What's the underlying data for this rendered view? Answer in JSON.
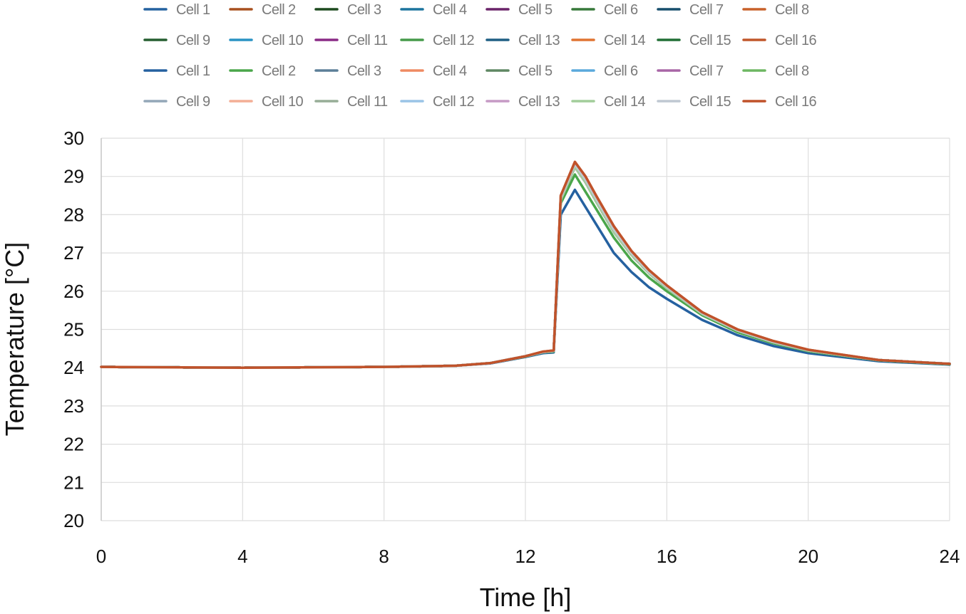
{
  "chart_data": {
    "type": "line",
    "xlabel": "Time [h]",
    "ylabel": "Temperature [°C]",
    "xlim": [
      0,
      24
    ],
    "ylim": [
      20,
      30
    ],
    "xticks": [
      0,
      4,
      8,
      12,
      16,
      20,
      24
    ],
    "yticks": [
      20,
      21,
      22,
      23,
      24,
      25,
      26,
      27,
      28,
      29,
      30
    ],
    "grid": true,
    "legend_placement": "top",
    "x": [
      0,
      4,
      8,
      10,
      11,
      12,
      12.5,
      12.8,
      13.0,
      13.4,
      13.7,
      14,
      14.5,
      15,
      15.5,
      16,
      17,
      18,
      19,
      20,
      22,
      24
    ],
    "series": [
      {
        "name": "Cell 1",
        "color": "#2462a0",
        "values": [
          24.02,
          24.0,
          24.02,
          24.05,
          24.12,
          24.3,
          24.41,
          24.44,
          28.4,
          29.25,
          28.85,
          28.35,
          27.55,
          26.95,
          26.47,
          26.08,
          25.41,
          24.97,
          24.67,
          24.45,
          24.2,
          24.1
        ]
      },
      {
        "name": "Cell 2",
        "color": "#a8501f",
        "values": [
          24.02,
          24.0,
          24.02,
          24.05,
          24.12,
          24.3,
          24.41,
          24.44,
          28.4,
          29.25,
          28.85,
          28.35,
          27.55,
          26.95,
          26.47,
          26.08,
          25.41,
          24.97,
          24.67,
          24.45,
          24.2,
          24.1
        ]
      },
      {
        "name": "Cell 3",
        "color": "#1d4a1f",
        "values": [
          24.02,
          24.0,
          24.02,
          24.05,
          24.12,
          24.3,
          24.41,
          24.44,
          28.4,
          29.25,
          28.85,
          28.35,
          27.55,
          26.95,
          26.47,
          26.08,
          25.41,
          24.97,
          24.67,
          24.45,
          24.2,
          24.1
        ]
      },
      {
        "name": "Cell 4",
        "color": "#1c749e",
        "values": [
          24.02,
          24.0,
          24.02,
          24.05,
          24.12,
          24.3,
          24.41,
          24.44,
          28.4,
          29.25,
          28.85,
          28.35,
          27.55,
          26.95,
          26.47,
          26.08,
          25.41,
          24.97,
          24.67,
          24.45,
          24.2,
          24.1
        ]
      },
      {
        "name": "Cell 5",
        "color": "#6a2369",
        "values": [
          24.02,
          24.0,
          24.02,
          24.05,
          24.12,
          24.3,
          24.41,
          24.44,
          28.4,
          29.25,
          28.85,
          28.35,
          27.55,
          26.95,
          26.47,
          26.08,
          25.41,
          24.97,
          24.67,
          24.45,
          24.2,
          24.1
        ]
      },
      {
        "name": "Cell 6",
        "color": "#37793a",
        "values": [
          24.02,
          24.0,
          24.02,
          24.05,
          24.12,
          24.3,
          24.41,
          24.44,
          28.4,
          29.25,
          28.85,
          28.35,
          27.55,
          26.95,
          26.47,
          26.08,
          25.41,
          24.97,
          24.67,
          24.45,
          24.2,
          24.1
        ]
      },
      {
        "name": "Cell 7",
        "color": "#174e6c",
        "values": [
          24.02,
          24.0,
          24.02,
          24.05,
          24.12,
          24.3,
          24.41,
          24.44,
          28.4,
          29.25,
          28.85,
          28.35,
          27.55,
          26.95,
          26.47,
          26.08,
          25.41,
          24.97,
          24.67,
          24.45,
          24.2,
          24.1
        ]
      },
      {
        "name": "Cell 8",
        "color": "#c8612a",
        "values": [
          24.02,
          24.0,
          24.02,
          24.05,
          24.12,
          24.3,
          24.41,
          24.44,
          28.4,
          29.25,
          28.85,
          28.35,
          27.55,
          26.95,
          26.47,
          26.08,
          25.41,
          24.97,
          24.67,
          24.45,
          24.2,
          24.1
        ]
      },
      {
        "name": "Cell 9",
        "color": "#255e30",
        "values": [
          24.02,
          24.0,
          24.02,
          24.05,
          24.12,
          24.3,
          24.41,
          24.44,
          28.4,
          29.25,
          28.85,
          28.35,
          27.55,
          26.95,
          26.47,
          26.08,
          25.41,
          24.97,
          24.67,
          24.45,
          24.2,
          24.1
        ]
      },
      {
        "name": "Cell 10",
        "color": "#2a93c4",
        "values": [
          24.02,
          24.0,
          24.02,
          24.05,
          24.12,
          24.3,
          24.41,
          24.44,
          28.4,
          29.25,
          28.85,
          28.35,
          27.55,
          26.95,
          26.47,
          26.08,
          25.41,
          24.97,
          24.67,
          24.45,
          24.2,
          24.1
        ]
      },
      {
        "name": "Cell 11",
        "color": "#8a2b86",
        "values": [
          24.02,
          24.0,
          24.02,
          24.05,
          24.12,
          24.3,
          24.41,
          24.44,
          28.4,
          29.25,
          28.85,
          28.35,
          27.55,
          26.95,
          26.47,
          26.08,
          25.41,
          24.97,
          24.67,
          24.45,
          24.2,
          24.1
        ]
      },
      {
        "name": "Cell 12",
        "color": "#459a4a",
        "values": [
          24.02,
          24.0,
          24.02,
          24.05,
          24.12,
          24.3,
          24.41,
          24.44,
          28.4,
          29.25,
          28.85,
          28.35,
          27.55,
          26.95,
          26.47,
          26.08,
          25.41,
          24.97,
          24.67,
          24.45,
          24.2,
          24.1
        ]
      },
      {
        "name": "Cell 13",
        "color": "#1f5f84",
        "values": [
          24.02,
          24.0,
          24.02,
          24.05,
          24.12,
          24.3,
          24.41,
          24.44,
          28.4,
          29.25,
          28.85,
          28.35,
          27.55,
          26.95,
          26.47,
          26.08,
          25.41,
          24.97,
          24.67,
          24.45,
          24.2,
          24.1
        ]
      },
      {
        "name": "Cell 14",
        "color": "#e07432",
        "values": [
          24.02,
          24.0,
          24.02,
          24.05,
          24.12,
          24.3,
          24.41,
          24.44,
          28.4,
          29.25,
          28.85,
          28.35,
          27.55,
          26.95,
          26.47,
          26.08,
          25.41,
          24.97,
          24.67,
          24.45,
          24.2,
          24.1
        ]
      },
      {
        "name": "Cell 15",
        "color": "#216f35",
        "values": [
          24.02,
          24.0,
          24.02,
          24.05,
          24.12,
          24.3,
          24.41,
          24.44,
          28.4,
          29.25,
          28.85,
          28.35,
          27.55,
          26.95,
          26.47,
          26.08,
          25.41,
          24.97,
          24.67,
          24.45,
          24.2,
          24.1
        ]
      },
      {
        "name": "Cell 16",
        "color": "#c0562a",
        "values": [
          24.02,
          24.0,
          24.02,
          24.05,
          24.12,
          24.3,
          24.42,
          24.45,
          28.5,
          29.38,
          29.0,
          28.5,
          27.7,
          27.05,
          26.55,
          26.15,
          25.45,
          25.0,
          24.7,
          24.47,
          24.2,
          24.1
        ]
      },
      {
        "name": "Cell 1",
        "color": "#2561a0",
        "values": [
          24.02,
          24.0,
          24.02,
          24.05,
          24.11,
          24.28,
          24.38,
          24.4,
          28.0,
          28.65,
          28.2,
          27.75,
          27.0,
          26.5,
          26.1,
          25.8,
          25.25,
          24.85,
          24.57,
          24.38,
          24.17,
          24.08
        ]
      },
      {
        "name": "Cell 2",
        "color": "#4aa64a",
        "values": [
          24.02,
          24.0,
          24.02,
          24.05,
          24.12,
          24.29,
          24.4,
          24.42,
          28.3,
          29.05,
          28.6,
          28.15,
          27.4,
          26.8,
          26.35,
          26.0,
          25.37,
          24.93,
          24.64,
          24.43,
          24.19,
          24.09
        ]
      },
      {
        "name": "Cell 3",
        "color": "#5c7f98",
        "values": [
          24.02,
          24.0,
          24.02,
          24.05,
          24.12,
          24.3,
          24.41,
          24.44,
          28.45,
          29.32,
          28.92,
          28.42,
          27.62,
          27.0,
          26.5,
          26.12,
          25.43,
          24.98,
          24.68,
          24.46,
          24.2,
          24.1
        ]
      },
      {
        "name": "Cell 4",
        "color": "#ef8a62",
        "values": [
          24.02,
          24.0,
          24.02,
          24.05,
          24.12,
          24.3,
          24.41,
          24.44,
          28.45,
          29.32,
          28.92,
          28.42,
          27.62,
          27.0,
          26.5,
          26.12,
          25.43,
          24.98,
          24.68,
          24.46,
          24.2,
          24.1
        ]
      },
      {
        "name": "Cell 5",
        "color": "#5f8763",
        "values": [
          24.02,
          24.0,
          24.02,
          24.05,
          24.12,
          24.3,
          24.41,
          24.44,
          28.4,
          29.25,
          28.85,
          28.35,
          27.55,
          26.95,
          26.47,
          26.08,
          25.41,
          24.97,
          24.67,
          24.45,
          24.2,
          24.1
        ]
      },
      {
        "name": "Cell 6",
        "color": "#5aa9dc",
        "values": [
          24.02,
          24.0,
          24.02,
          24.05,
          24.12,
          24.3,
          24.41,
          24.44,
          28.4,
          29.25,
          28.85,
          28.35,
          27.55,
          26.95,
          26.47,
          26.08,
          25.41,
          24.97,
          24.67,
          24.45,
          24.2,
          24.1
        ]
      },
      {
        "name": "Cell 7",
        "color": "#a866a6",
        "values": [
          24.02,
          24.0,
          24.02,
          24.05,
          24.12,
          24.3,
          24.41,
          24.44,
          28.4,
          29.25,
          28.85,
          28.35,
          27.55,
          26.95,
          26.47,
          26.08,
          25.41,
          24.97,
          24.67,
          24.45,
          24.2,
          24.1
        ]
      },
      {
        "name": "Cell 8",
        "color": "#6db762",
        "values": [
          24.02,
          24.0,
          24.02,
          24.05,
          24.12,
          24.3,
          24.41,
          24.44,
          28.4,
          29.25,
          28.85,
          28.35,
          27.55,
          26.95,
          26.47,
          26.08,
          25.41,
          24.97,
          24.67,
          24.45,
          24.2,
          24.1
        ]
      },
      {
        "name": "Cell 9",
        "color": "#94a7b8",
        "values": [
          24.02,
          24.0,
          24.02,
          24.05,
          24.12,
          24.3,
          24.41,
          24.44,
          28.4,
          29.25,
          28.85,
          28.35,
          27.55,
          26.95,
          26.47,
          26.08,
          25.41,
          24.97,
          24.67,
          24.45,
          24.2,
          24.1
        ]
      },
      {
        "name": "Cell 10",
        "color": "#f3ae96",
        "values": [
          24.02,
          24.0,
          24.02,
          24.05,
          24.12,
          24.3,
          24.41,
          24.44,
          28.4,
          29.25,
          28.85,
          28.35,
          27.55,
          26.95,
          26.47,
          26.08,
          25.41,
          24.97,
          24.67,
          24.45,
          24.2,
          24.1
        ]
      },
      {
        "name": "Cell 11",
        "color": "#97ad97",
        "values": [
          24.02,
          24.0,
          24.02,
          24.05,
          24.12,
          24.3,
          24.41,
          24.44,
          28.4,
          29.25,
          28.85,
          28.35,
          27.55,
          26.95,
          26.47,
          26.08,
          25.41,
          24.97,
          24.67,
          24.45,
          24.2,
          24.1
        ]
      },
      {
        "name": "Cell 12",
        "color": "#9ac4e6",
        "values": [
          24.02,
          24.0,
          24.02,
          24.05,
          24.12,
          24.3,
          24.41,
          24.44,
          28.4,
          29.25,
          28.85,
          28.35,
          27.55,
          26.95,
          26.47,
          26.08,
          25.41,
          24.97,
          24.67,
          24.45,
          24.2,
          24.1
        ]
      },
      {
        "name": "Cell 13",
        "color": "#c69ac5",
        "values": [
          24.02,
          24.0,
          24.02,
          24.05,
          24.12,
          24.3,
          24.41,
          24.44,
          28.4,
          29.25,
          28.85,
          28.35,
          27.55,
          26.95,
          26.47,
          26.08,
          25.41,
          24.97,
          24.67,
          24.45,
          24.2,
          24.1
        ]
      },
      {
        "name": "Cell 14",
        "color": "#a2cd9a",
        "values": [
          24.02,
          24.0,
          24.02,
          24.05,
          24.12,
          24.3,
          24.41,
          24.44,
          28.4,
          29.25,
          28.85,
          28.35,
          27.55,
          26.95,
          26.47,
          26.08,
          25.41,
          24.97,
          24.67,
          24.45,
          24.2,
          24.1
        ]
      },
      {
        "name": "Cell 15",
        "color": "#bfc8d2",
        "values": [
          24.02,
          24.0,
          24.02,
          24.05,
          24.12,
          24.3,
          24.41,
          24.44,
          28.45,
          29.32,
          28.92,
          28.42,
          27.62,
          27.0,
          26.5,
          26.12,
          25.43,
          24.98,
          24.68,
          24.46,
          24.2,
          24.1
        ]
      },
      {
        "name": "Cell 16",
        "color": "#c0522a",
        "values": [
          24.02,
          24.0,
          24.02,
          24.05,
          24.12,
          24.3,
          24.42,
          24.45,
          28.5,
          29.38,
          29.0,
          28.5,
          27.7,
          27.05,
          26.55,
          26.15,
          25.45,
          25.0,
          24.7,
          24.47,
          24.2,
          24.1
        ]
      }
    ]
  }
}
